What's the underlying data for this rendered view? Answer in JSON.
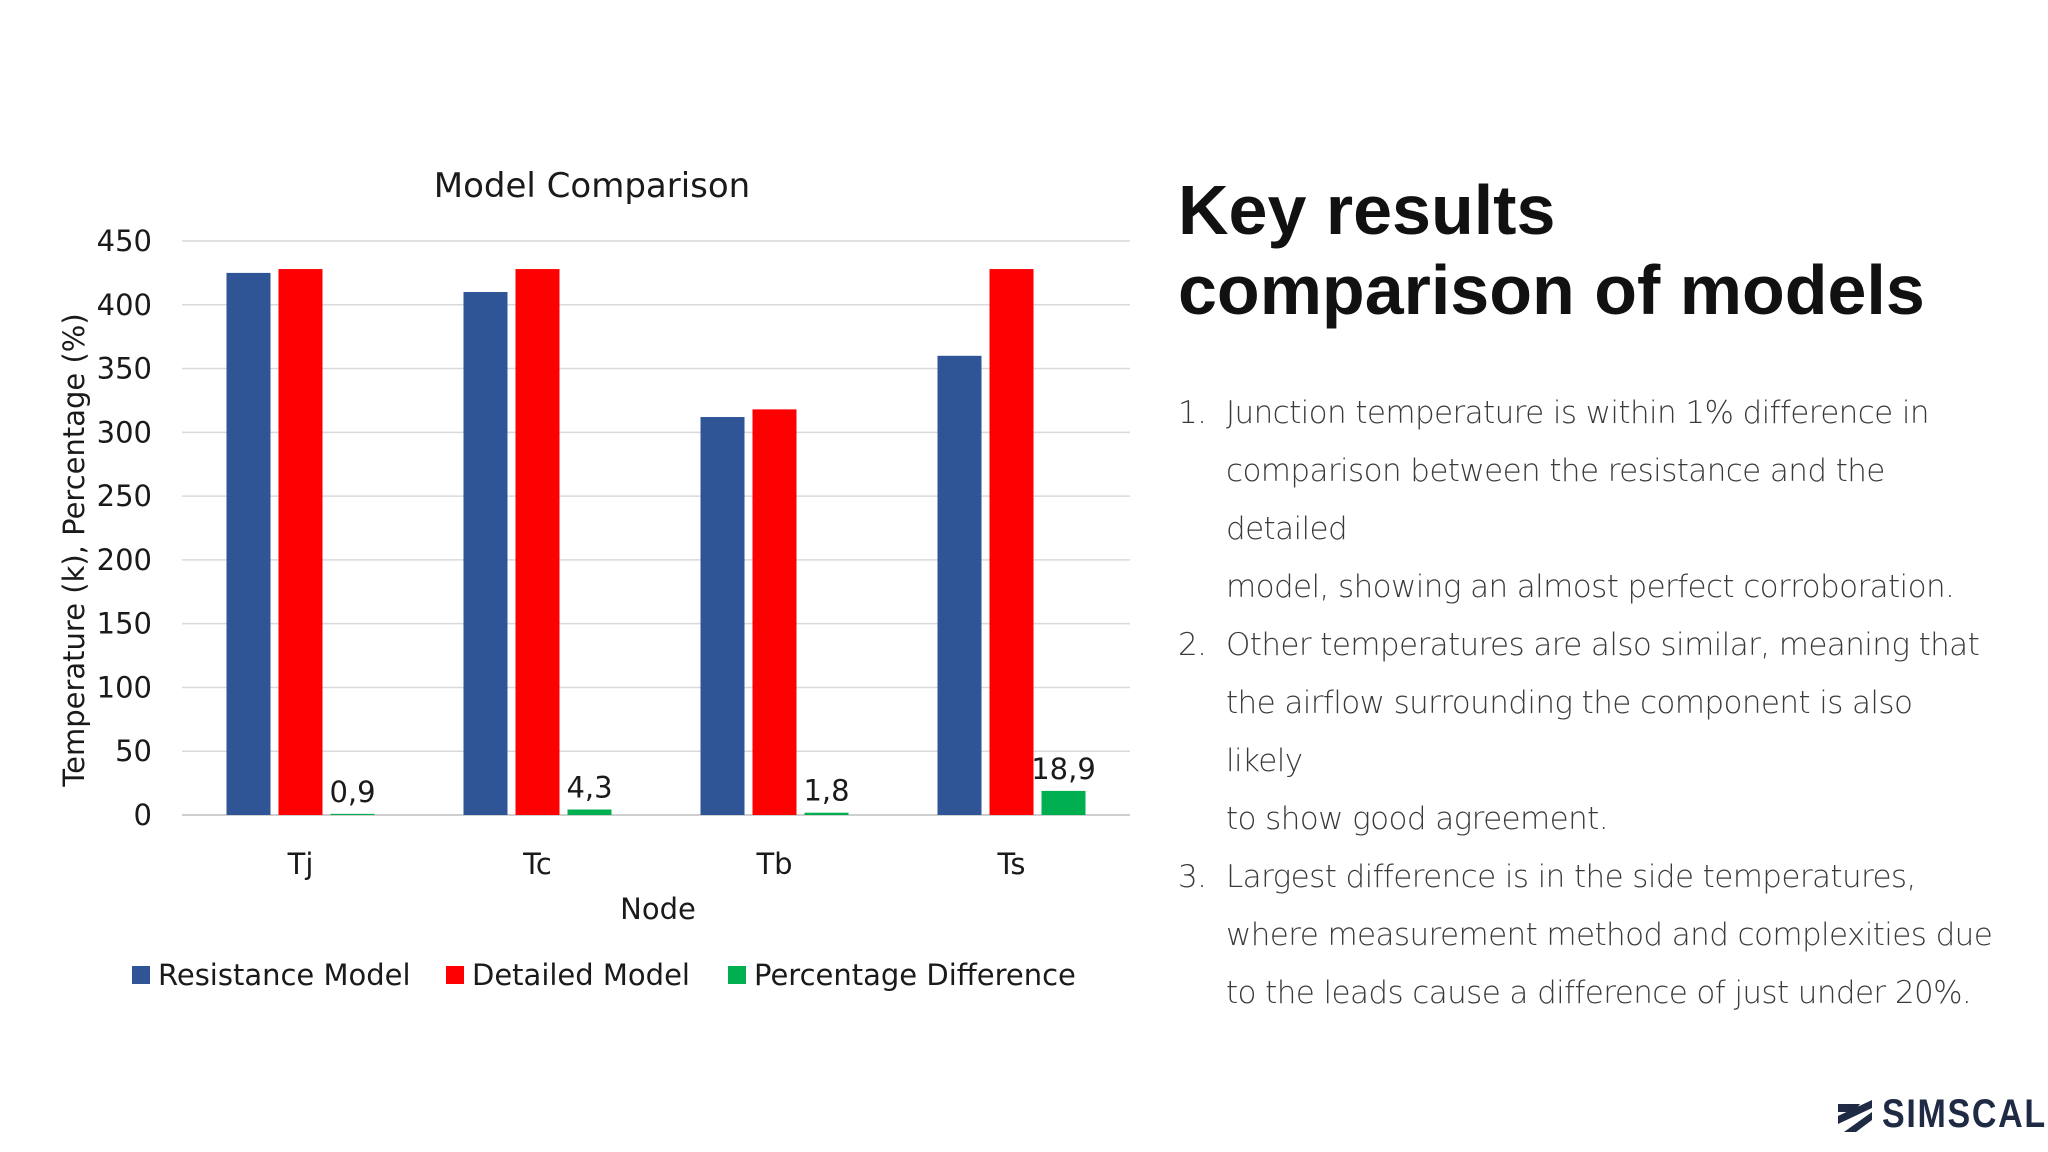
{
  "heading": {
    "line1": "Key results",
    "line2": "comparison of models"
  },
  "results": [
    {
      "num": "1.",
      "lines": [
        "Junction temperature is within 1% difference in",
        "comparison between the resistance and the detailed",
        "model, showing  an almost perfect corroboration."
      ]
    },
    {
      "num": "2.",
      "lines": [
        "Other temperatures are also similar, meaning that",
        "the airflow surrounding the component is also likely",
        "to show good agreement."
      ]
    },
    {
      "num": "3.",
      "lines": [
        "Largest difference is in the side temperatures,",
        "where measurement method and complexities due",
        "to the leads cause a difference of just under 20%."
      ]
    }
  ],
  "logo": {
    "text": "SIMSCALE",
    "icon": "simscale-logo-icon",
    "color": "#1f2a44"
  },
  "chart_data": {
    "type": "bar",
    "title": "Model Comparison",
    "xlabel": "Node",
    "ylabel": "Temperature (k), Percentage (%)",
    "categories": [
      "Tj",
      "Tc",
      "Tb",
      "Ts"
    ],
    "ylim": [
      0,
      450
    ],
    "yticks": [
      "0",
      "50",
      "100",
      "150",
      "200",
      "250",
      "300",
      "350",
      "400",
      "450"
    ],
    "grid": true,
    "legend_position": "bottom",
    "series": [
      {
        "name": "Resistance Model",
        "color": "#2f5597",
        "values": [
          425,
          410,
          312,
          360
        ]
      },
      {
        "name": "Detailed Model",
        "color": "#ff0000",
        "values": [
          428,
          428,
          318,
          428
        ]
      },
      {
        "name": "Percentage Difference",
        "color": "#00b050",
        "values": [
          0.9,
          4.3,
          1.8,
          18.9
        ],
        "labels": [
          "0,9",
          "4,3",
          "1,8",
          "18,9"
        ]
      }
    ]
  }
}
